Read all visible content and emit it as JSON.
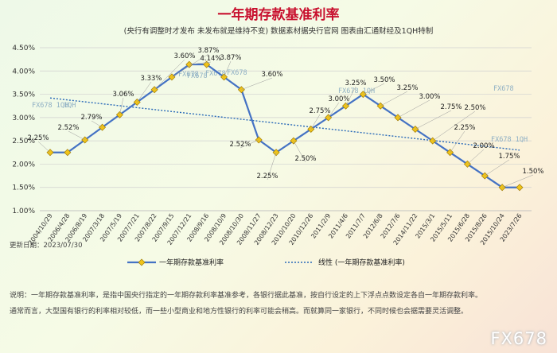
{
  "chart_data": {
    "type": "line",
    "title": "一年期存款基准利率",
    "subtitle": "(央行有调整时才发布  未发布就是维持不变)  数据素材据央行官网  图表由汇通财经及1QH特制",
    "categories": [
      "2004/10/29",
      "2006/4/28",
      "2006/8/19",
      "2007/3/18",
      "2007/5/19",
      "2007/7/21",
      "2007/8/22",
      "2007/9/15",
      "2007/12/21",
      "2008/9/16",
      "2008/10/9",
      "2008/10/30",
      "2008/11/27",
      "2008/12/23",
      "2010/10/20",
      "2010/12/26",
      "2011/2/9",
      "2011/4/6",
      "2011/7/7",
      "2012/6/8",
      "2012/7/6",
      "2014/11/22",
      "2015/3/1",
      "2015/5/11",
      "2015/6/28",
      "2015/8/26",
      "2015/10/24",
      "2023/7/26"
    ],
    "series": [
      {
        "name": "一年期存款基准利率",
        "values": [
          2.25,
          2.25,
          2.52,
          2.79,
          3.06,
          3.33,
          3.6,
          3.87,
          4.14,
          4.14,
          3.87,
          3.6,
          2.52,
          2.25,
          2.5,
          2.75,
          3.0,
          3.25,
          3.5,
          3.25,
          3.0,
          2.75,
          2.5,
          2.25,
          2.0,
          1.75,
          1.5,
          1.5
        ],
        "color": "#4472c4",
        "marker_color": "#f0c419"
      }
    ],
    "trendline": {
      "name": "线性 (一年期存款基准利率)",
      "start": 3.42,
      "end": 2.3,
      "color": "#2a6ab8"
    },
    "data_labels": [
      "2.25%",
      "2.52%",
      "2.79%",
      "3.06%",
      "3.33%",
      "3.60%",
      "3.87%",
      "4.14%",
      "3.87%",
      "3.60%",
      "2.52%",
      "2.25%",
      "2.50%",
      "2.75%",
      "3.00%",
      "3.25%",
      "3.50%",
      "3.25%",
      "3.00%",
      "2.75%",
      "2.50%",
      "2.25%",
      "2.00%",
      "1.75%",
      "1.50%"
    ],
    "ylim": [
      1.0,
      4.5
    ],
    "yticks": [
      "1.00%",
      "1.50%",
      "2.00%",
      "2.50%",
      "3.00%",
      "3.50%",
      "4.00%",
      "4.50%"
    ],
    "grid": true,
    "legend_position": "bottom",
    "xlabel": "",
    "ylabel": ""
  },
  "watermarks": [
    "FX678",
    "FX678",
    "FX678",
    "FX678",
    "FX678 1QH",
    "1QH",
    "FX678 1QH",
    "FX678",
    "FX678 1QH"
  ],
  "updated": "更新日期：2023/07/30",
  "notes": [
    "说明：一年期存款基准利率，是指中国央行指定的一年期存款利率基准参考，各银行据此基准，按自行设定的上下浮点点数设定各自一年期存款利率。",
    "通常而言，大型国有银行的利率相对较低，而一些小型商业和地方性银行的利率可能会稍高。而就算同一家银行，不同时候也会据需要灵活调整。"
  ],
  "brand": "FX678"
}
